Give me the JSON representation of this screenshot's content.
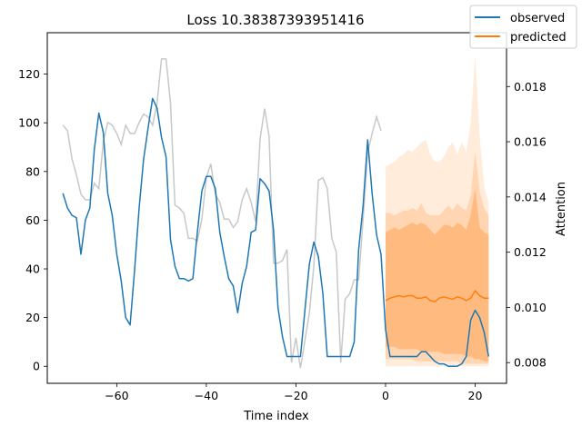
{
  "chart_data": {
    "type": "line",
    "title": "Loss 10.38387393951416",
    "xlabel": "Time index",
    "ylabel": "",
    "y2label": "Attention",
    "xlim": [
      -75.5,
      27
    ],
    "ylim": [
      -7,
      137
    ],
    "y2lim": [
      0.00725,
      0.01995
    ],
    "x_ticks": [
      -60,
      -40,
      -20,
      0,
      20
    ],
    "y_ticks": [
      0,
      20,
      40,
      60,
      80,
      100,
      120
    ],
    "y2_ticks": [
      0.008,
      0.01,
      0.012,
      0.014,
      0.016,
      0.018
    ],
    "legend": {
      "position": "top-right",
      "entries": [
        "observed",
        "predicted"
      ]
    },
    "colors": {
      "observed": "#1f77b4",
      "predicted": "#ff7f0e",
      "attention": "#c8c8c8",
      "band": "#ff7f0e"
    },
    "attention": {
      "x": [
        -72,
        -71,
        -70,
        -69,
        -68,
        -67,
        -66,
        -65,
        -64,
        -63,
        -62,
        -61,
        -60,
        -59,
        -58,
        -57,
        -56,
        -55,
        -54,
        -53,
        -52,
        -51,
        -50,
        -49,
        -48,
        -47,
        -46,
        -45,
        -44,
        -43,
        -42,
        -41,
        -40,
        -39,
        -38,
        -37,
        -36,
        -35,
        -34,
        -33,
        -32,
        -31,
        -30,
        -29,
        -28,
        -27,
        -26,
        -25,
        -24,
        -23,
        -22,
        -21,
        -20,
        -19,
        -18,
        -17,
        -16,
        -15,
        -14,
        -13,
        -12,
        -11,
        -10,
        -9,
        -8,
        -7,
        -6,
        -5,
        -4,
        -3,
        -2,
        -1
      ],
      "values": [
        0.0166,
        0.0164,
        0.0154,
        0.0148,
        0.0141,
        0.0139,
        0.0139,
        0.0145,
        0.0143,
        0.016,
        0.0167,
        0.0166,
        0.0163,
        0.0159,
        0.0166,
        0.0163,
        0.0163,
        0.0167,
        0.017,
        0.0169,
        0.0166,
        0.0174,
        0.019,
        0.019,
        0.0174,
        0.0137,
        0.0136,
        0.0134,
        0.0125,
        0.0125,
        0.0124,
        0.0132,
        0.0147,
        0.0152,
        0.0141,
        0.0138,
        0.0132,
        0.0132,
        0.0129,
        0.0131,
        0.0139,
        0.0143,
        0.0138,
        0.0131,
        0.0161,
        0.0172,
        0.0162,
        0.0116,
        0.0116,
        0.0117,
        0.0121,
        0.008,
        0.0089,
        0.0078,
        0.0088,
        0.0098,
        0.0115,
        0.0146,
        0.0147,
        0.0143,
        0.0125,
        0.012,
        0.008,
        0.0103,
        0.0105,
        0.011,
        0.011,
        0.0132,
        0.0156,
        0.0163,
        0.0169,
        0.0164
      ]
    },
    "observed": {
      "x": [
        -72,
        -71,
        -70,
        -69,
        -68,
        -67,
        -66,
        -65,
        -64,
        -63,
        -62,
        -61,
        -60,
        -59,
        -58,
        -57,
        -56,
        -55,
        -54,
        -53,
        -52,
        -51,
        -50,
        -49,
        -48,
        -47,
        -46,
        -45,
        -44,
        -43,
        -42,
        -41,
        -40,
        -39,
        -38,
        -37,
        -36,
        -35,
        -34,
        -33,
        -32,
        -31,
        -30,
        -29,
        -28,
        -27,
        -26,
        -25,
        -24,
        -23,
        -22,
        -21,
        -20,
        -19,
        -18,
        -17,
        -16,
        -15,
        -14,
        -13,
        -12,
        -11,
        -10,
        -9,
        -8,
        -7,
        -6,
        -5,
        -4,
        -3,
        -2,
        -1,
        0,
        1,
        2,
        3,
        4,
        5,
        6,
        7,
        8,
        9,
        10,
        11,
        12,
        13,
        14,
        15,
        16,
        17,
        18,
        19,
        20,
        21,
        22,
        23
      ],
      "values": [
        71,
        65,
        62,
        61,
        46,
        60,
        65,
        89,
        104,
        96,
        71,
        62,
        46,
        35,
        20,
        17,
        40,
        65,
        85,
        98,
        110,
        106,
        94,
        86,
        52,
        41,
        36,
        36,
        35,
        36,
        55,
        72,
        78,
        78,
        73,
        55,
        45,
        36,
        33,
        22,
        34,
        41,
        55,
        56,
        77,
        75,
        72,
        56,
        24,
        12,
        4,
        4,
        4,
        4,
        23,
        42,
        51,
        45,
        30,
        4,
        4,
        4,
        4,
        4,
        4,
        10,
        48,
        66,
        93,
        71,
        54,
        46,
        15,
        4,
        4,
        4,
        4,
        4,
        4,
        4,
        6,
        6,
        4,
        2,
        1,
        1,
        0,
        0,
        0,
        1,
        4,
        19,
        23,
        20,
        14,
        4
      ]
    },
    "predicted": {
      "x": [
        0,
        1,
        2,
        3,
        4,
        5,
        6,
        7,
        8,
        9,
        10,
        11,
        12,
        13,
        14,
        15,
        16,
        17,
        18,
        19,
        20,
        21,
        22,
        23
      ],
      "median": [
        27,
        28,
        28.5,
        29,
        28.5,
        29,
        29,
        28,
        28,
        28.5,
        27,
        26.5,
        28,
        28.5,
        28,
        27.5,
        28.5,
        28,
        27,
        28,
        31,
        29,
        28,
        28
      ],
      "band_inner": {
        "lower": [
          8,
          8,
          8,
          7,
          7,
          7,
          7,
          7,
          6,
          6,
          6,
          6,
          6,
          5,
          5,
          5,
          5,
          5,
          4,
          4,
          3,
          3,
          2,
          2
        ],
        "upper": [
          55,
          56,
          57,
          56,
          57,
          58,
          59,
          58,
          59,
          58,
          56,
          54,
          56,
          58,
          58,
          57,
          59,
          58,
          56,
          62,
          73,
          57,
          55,
          54
        ]
      },
      "band_middle": {
        "lower": [
          3,
          3,
          3,
          3,
          3,
          3,
          3,
          2,
          2,
          2,
          2,
          2,
          2,
          2,
          2,
          2,
          2,
          1,
          1,
          1,
          1,
          1,
          1,
          1
        ],
        "upper": [
          63,
          63,
          62,
          63,
          64,
          64,
          65,
          64,
          67,
          63,
          62,
          62,
          62,
          64,
          66,
          64,
          67,
          65,
          64,
          70,
          88,
          72,
          65,
          62
        ]
      },
      "band_outer": {
        "lower": [
          0,
          0,
          0,
          0,
          0,
          0,
          0,
          0,
          0,
          0,
          0,
          0,
          0,
          0,
          0,
          0,
          0,
          0,
          0,
          0,
          0,
          0,
          0,
          0
        ],
        "upper": [
          82,
          83,
          84,
          86,
          87,
          89,
          88,
          90,
          92,
          93,
          87,
          84,
          84,
          86,
          90,
          92,
          87,
          92,
          88,
          100,
          128,
          95,
          74,
          67
        ]
      }
    }
  }
}
